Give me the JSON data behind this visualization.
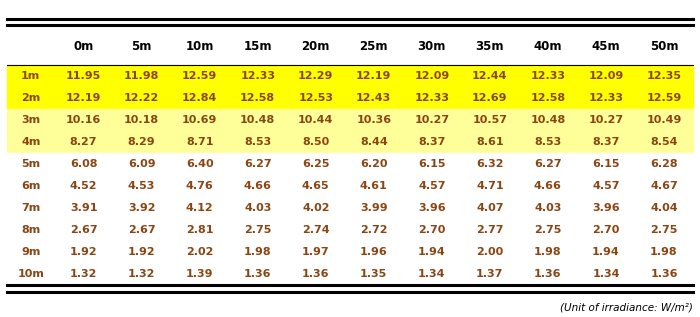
{
  "col_headers": [
    "",
    "0m",
    "5m",
    "10m",
    "15m",
    "20m",
    "25m",
    "30m",
    "35m",
    "40m",
    "45m",
    "50m"
  ],
  "rows": [
    {
      "label": "1m",
      "values": [
        11.95,
        11.98,
        12.59,
        12.33,
        12.29,
        12.19,
        12.09,
        12.44,
        12.33,
        12.09,
        12.35
      ],
      "highlight": "bright_yellow"
    },
    {
      "label": "2m",
      "values": [
        12.19,
        12.22,
        12.84,
        12.58,
        12.53,
        12.43,
        12.33,
        12.69,
        12.58,
        12.33,
        12.59
      ],
      "highlight": "bright_yellow"
    },
    {
      "label": "3m",
      "values": [
        10.16,
        10.18,
        10.69,
        10.48,
        10.44,
        10.36,
        10.27,
        10.57,
        10.48,
        10.27,
        10.49
      ],
      "highlight": "light_yellow"
    },
    {
      "label": "4m",
      "values": [
        8.27,
        8.29,
        8.71,
        8.53,
        8.5,
        8.44,
        8.37,
        8.61,
        8.53,
        8.37,
        8.54
      ],
      "highlight": "light_yellow"
    },
    {
      "label": "5m",
      "values": [
        6.08,
        6.09,
        6.4,
        6.27,
        6.25,
        6.2,
        6.15,
        6.32,
        6.27,
        6.15,
        6.28
      ],
      "highlight": "none"
    },
    {
      "label": "6m",
      "values": [
        4.52,
        4.53,
        4.76,
        4.66,
        4.65,
        4.61,
        4.57,
        4.71,
        4.66,
        4.57,
        4.67
      ],
      "highlight": "none"
    },
    {
      "label": "7m",
      "values": [
        3.91,
        3.92,
        4.12,
        4.03,
        4.02,
        3.99,
        3.96,
        4.07,
        4.03,
        3.96,
        4.04
      ],
      "highlight": "none"
    },
    {
      "label": "8m",
      "values": [
        2.67,
        2.67,
        2.81,
        2.75,
        2.74,
        2.72,
        2.7,
        2.77,
        2.75,
        2.7,
        2.75
      ],
      "highlight": "none"
    },
    {
      "label": "9m",
      "values": [
        1.92,
        1.92,
        2.02,
        1.98,
        1.97,
        1.96,
        1.94,
        2.0,
        1.98,
        1.94,
        1.98
      ],
      "highlight": "none"
    },
    {
      "label": "10m",
      "values": [
        1.32,
        1.32,
        1.39,
        1.36,
        1.36,
        1.35,
        1.34,
        1.37,
        1.36,
        1.34,
        1.36
      ],
      "highlight": "none"
    }
  ],
  "bright_yellow": "#FFFF00",
  "light_yellow": "#FFFF99",
  "text_color": "#8B4513",
  "header_text_color": "#000000",
  "font_size": 8.0,
  "header_font_size": 8.5,
  "footer_note": "(Unit of irradiance: W/m²)",
  "background_color": "#FFFFFF"
}
